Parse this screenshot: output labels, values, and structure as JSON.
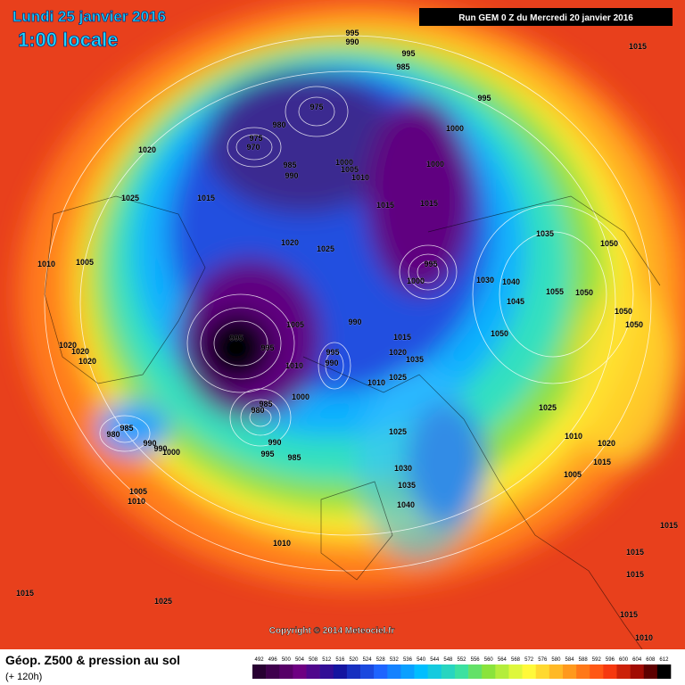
{
  "header": {
    "date": "Lundi 25 janvier 2016",
    "time": "1:00 locale",
    "run": "Run GEM 0 Z du Mercredi 20 janvier 2016"
  },
  "map": {
    "pressure_labels": [
      995,
      990,
      995,
      985,
      995,
      1015,
      975,
      980,
      975,
      970,
      1000,
      1020,
      985,
      990,
      1000,
      1005,
      1010,
      1000,
      1025,
      1015,
      1015,
      1015,
      1035,
      1050,
      1010,
      1005,
      1020,
      1025,
      995,
      1000,
      1030,
      1040,
      1055,
      1050,
      1045,
      1050,
      1050,
      990,
      1005,
      995,
      995,
      1050,
      1015,
      1020,
      1020,
      1020,
      1020,
      1035,
      995,
      990,
      1010,
      1010,
      1025,
      1000,
      985,
      980,
      1025,
      985,
      980,
      990,
      990,
      1000,
      1010,
      1020,
      990,
      995,
      985,
      1025,
      1015,
      1030,
      1035,
      1005,
      1010,
      1040,
      1005,
      1010,
      1015,
      1015,
      1025,
      1015,
      1015,
      1015,
      1010
    ]
  },
  "footer": {
    "copyright": "Copyright © 2014 Meteociel.fr",
    "title": "Géop. Z500 & pression au sol",
    "subtitle": "(+ 120h)"
  },
  "colorbar": {
    "ticks": [
      492,
      496,
      500,
      504,
      508,
      512,
      516,
      520,
      524,
      528,
      532,
      536,
      540,
      544,
      548,
      552,
      556,
      560,
      564,
      568,
      572,
      576,
      580,
      584,
      588,
      592,
      596,
      600,
      604,
      608,
      612
    ]
  }
}
